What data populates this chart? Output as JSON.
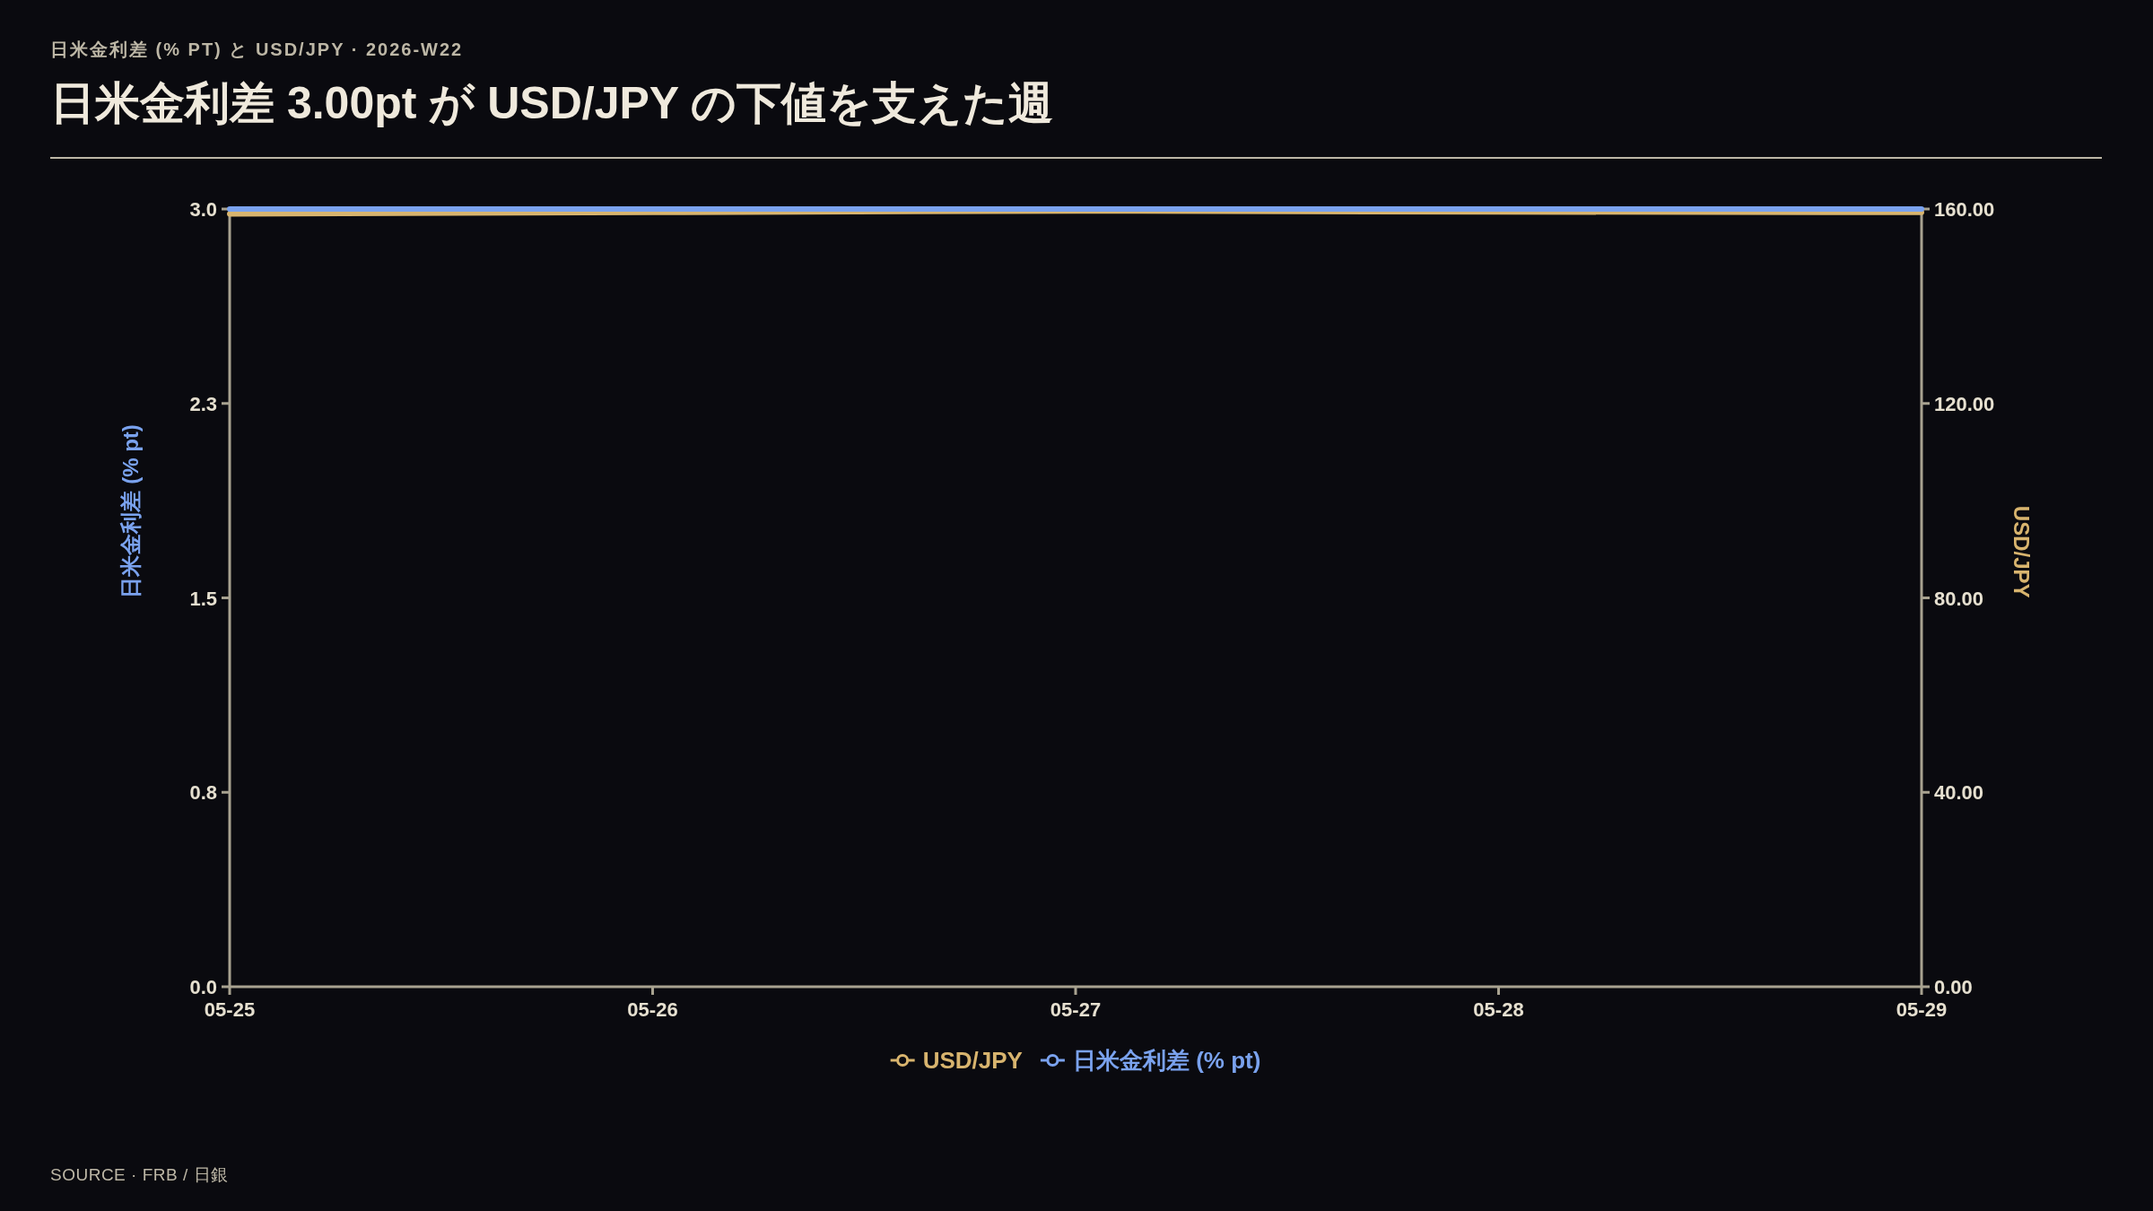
{
  "chart_data": {
    "type": "line",
    "subtitle": "日米金利差 (% PT) と USD/JPY · 2026-W22",
    "title": "日米金利差 3.00pt が USD/JPY の下値を支えた週",
    "x": [
      "2026-05-25",
      "2026-05-26",
      "2026-05-27",
      "2026-05-28",
      "2026-05-29"
    ],
    "xlim": [
      "2026-05-25",
      "2026-05-29"
    ],
    "xticks": [
      {
        "value": "2026-05-25",
        "label": "05-25"
      },
      {
        "value": "2026-05-26",
        "label": "05-26"
      },
      {
        "value": "2026-05-27",
        "label": "05-27"
      },
      {
        "value": "2026-05-28",
        "label": "05-28"
      },
      {
        "value": "2026-05-29",
        "label": "05-29"
      }
    ],
    "ylabel": "日米金利差 (% pt)",
    "y2label": "USD/JPY",
    "ylim": [
      0,
      3
    ],
    "yticks": [
      {
        "value": 0,
        "label": "0.0"
      },
      {
        "value": 0.75,
        "label": "0.8"
      },
      1.5,
      {
        "value": 2.25,
        "label": "2.3"
      },
      {
        "value": 3,
        "label": "3.0"
      }
    ],
    "y2lim": [
      0,
      160
    ],
    "y2ticks": [
      {
        "value": 0,
        "label": "0.00"
      },
      {
        "value": 40,
        "label": "40.00"
      },
      {
        "value": 80,
        "label": "80.00"
      },
      {
        "value": 120,
        "label": "120.00"
      },
      {
        "value": 160,
        "label": "160.00"
      }
    ],
    "series": [
      {
        "name": "USD/JPY",
        "color": "#d8b46e",
        "axis": "y2",
        "values": [
          159.0,
          159.3,
          159.6,
          159.4,
          159.3
        ]
      },
      {
        "name": "日米金利差 (% pt)",
        "color": "#7aa2ee",
        "axis": "y",
        "values": [
          3.0,
          3.0,
          3.0,
          3.0,
          3.0
        ]
      }
    ],
    "legend": "bottom",
    "annotations": [
      "SOURCE · FRB / 日銀"
    ]
  }
}
